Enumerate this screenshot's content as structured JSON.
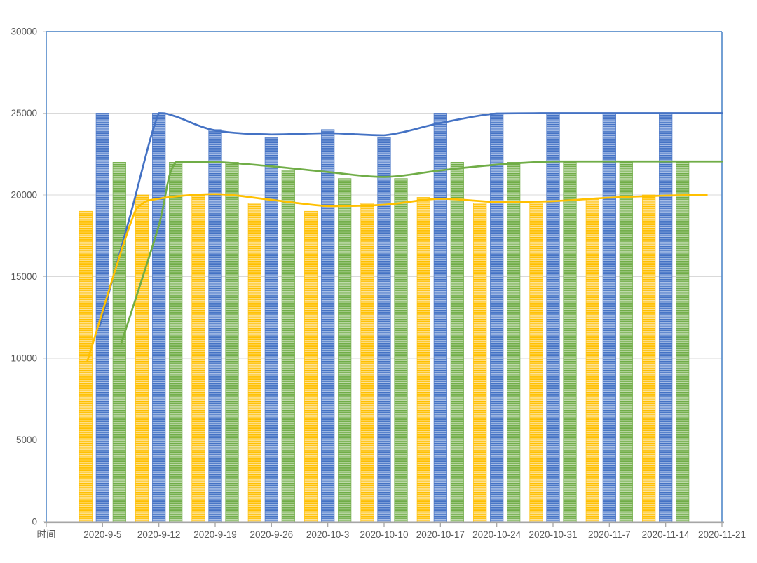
{
  "chart_data": {
    "type": "combo-bar-line",
    "title": "",
    "xlabel_header": "时间",
    "categories": [
      "时间",
      "2020-9-5",
      "2020-9-12",
      "2020-9-19",
      "2020-9-26",
      "2020-10-3",
      "2020-10-10",
      "2020-10-17",
      "2020-10-24",
      "2020-10-31",
      "2020-11-7",
      "2020-11-14",
      "2020-11-21"
    ],
    "y_axis": {
      "min": 0,
      "max": 30000,
      "step": 5000,
      "ticks": [
        0,
        5000,
        10000,
        15000,
        20000,
        25000,
        30000
      ]
    },
    "grid_on": true,
    "legend": "none",
    "bar_series": [
      {
        "name": "yellow-bars",
        "color": "#FFC000",
        "light": "#FFE5A0",
        "values": [
          null,
          19000,
          20000,
          20000,
          19500,
          19000,
          19500,
          19850,
          19500,
          19500,
          19800,
          20000,
          null
        ]
      },
      {
        "name": "blue-bars",
        "color": "#4472C4",
        "light": "#ADC3E9",
        "values": [
          null,
          25000,
          25000,
          24000,
          23500,
          24000,
          23500,
          25000,
          25000,
          25000,
          25000,
          25000,
          null
        ]
      },
      {
        "name": "green-bars",
        "color": "#70AD47",
        "light": "#C3DCB0",
        "values": [
          null,
          22000,
          22000,
          22000,
          21500,
          21000,
          21000,
          22000,
          22000,
          22000,
          22000,
          22000,
          null
        ]
      }
    ],
    "line_series": [
      {
        "name": "green-line",
        "color": "#70AD47",
        "points": [
          [
            1.33,
            10900
          ],
          [
            1.98,
            17900
          ],
          [
            2.3,
            22000
          ],
          [
            3,
            22020
          ],
          [
            4,
            21750
          ],
          [
            5,
            21400
          ],
          [
            6,
            21100
          ],
          [
            7,
            21500
          ],
          [
            8,
            21850
          ],
          [
            9,
            22050
          ],
          [
            10,
            22050
          ],
          [
            11,
            22050
          ],
          [
            12,
            22050
          ]
        ]
      },
      {
        "name": "blue-line",
        "color": "#4472C4",
        "points": [
          [
            0.95,
            12000
          ],
          [
            1.48,
            18600
          ],
          [
            2,
            25000
          ],
          [
            2.3,
            24800
          ],
          [
            3,
            23950
          ],
          [
            4,
            23700
          ],
          [
            5,
            23780
          ],
          [
            6,
            23650
          ],
          [
            7,
            24400
          ],
          [
            8,
            24980
          ],
          [
            9,
            25000
          ],
          [
            10,
            25000
          ],
          [
            11,
            25000
          ],
          [
            12,
            25000
          ]
        ]
      },
      {
        "name": "yellow-line",
        "color": "#FFC000",
        "points": [
          [
            0.73,
            9830
          ],
          [
            1.6,
            19170
          ],
          [
            2,
            19770
          ],
          [
            3,
            20050
          ],
          [
            4,
            19700
          ],
          [
            5,
            19320
          ],
          [
            6,
            19400
          ],
          [
            7,
            19770
          ],
          [
            8,
            19570
          ],
          [
            9,
            19620
          ],
          [
            10,
            19830
          ],
          [
            11,
            19960
          ],
          [
            11.73,
            20000
          ]
        ]
      }
    ],
    "colors": {
      "grid": "#D9D9D9",
      "axis_line": "#A6A6A6",
      "y_tick": "#C9C9C9",
      "plot_border": "#5B8FCC",
      "label": "#595959",
      "background": "#FFFFFF"
    }
  }
}
